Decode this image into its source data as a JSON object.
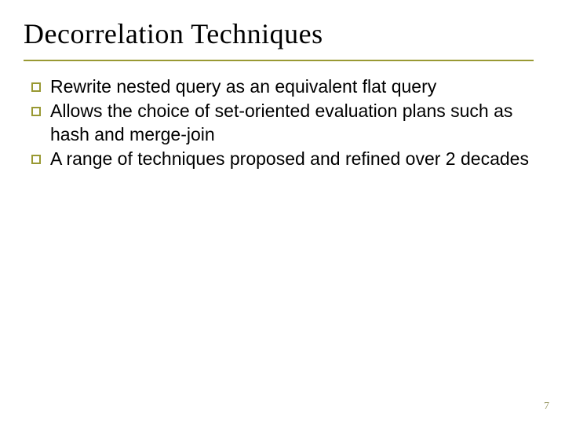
{
  "colors": {
    "accent": "#999933",
    "title_text": "#000000",
    "body_text": "#000000",
    "background": "#ffffff",
    "page_number": "#999966"
  },
  "title": "Decorrelation Techniques",
  "bullets": [
    "Rewrite nested query as an equivalent flat query",
    "Allows the choice of set-oriented evaluation plans such as hash and merge-join",
    "A range of techniques proposed and refined over 2 decades"
  ],
  "page_number": "7",
  "typography": {
    "title_fontsize": 36,
    "body_fontsize": 23,
    "title_font": "Georgia",
    "body_font": "Verdana"
  }
}
